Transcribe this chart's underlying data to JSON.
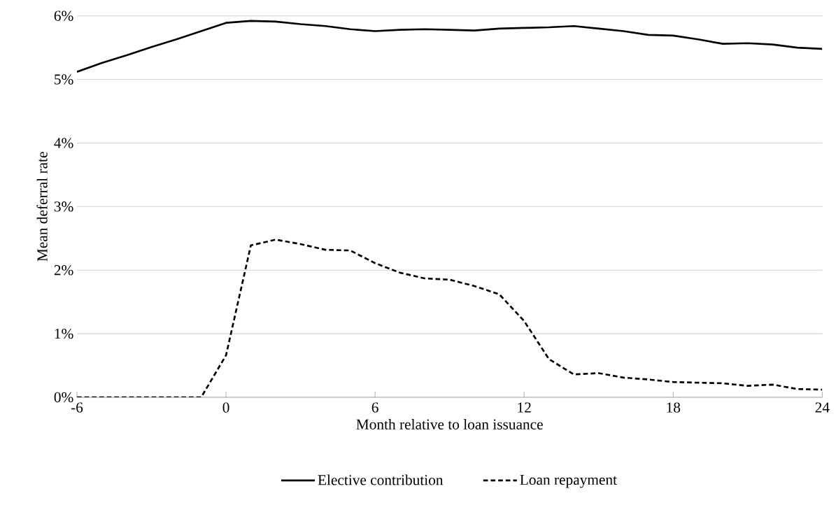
{
  "chart_data": {
    "type": "line",
    "xlabel": "Month relative to loan issuance",
    "ylabel": "Mean deferral rate",
    "x": [
      -6,
      -5,
      -4,
      -3,
      -2,
      -1,
      0,
      1,
      2,
      3,
      4,
      5,
      6,
      7,
      8,
      9,
      10,
      11,
      12,
      13,
      14,
      15,
      16,
      17,
      18,
      19,
      20,
      21,
      22,
      23,
      24
    ],
    "series": [
      {
        "name": "Elective contribution",
        "color": "#000000",
        "line_style": "solid",
        "values": [
          5.12,
          5.26,
          5.38,
          5.51,
          5.63,
          5.76,
          5.89,
          5.92,
          5.91,
          5.87,
          5.84,
          5.79,
          5.76,
          5.78,
          5.79,
          5.78,
          5.77,
          5.8,
          5.81,
          5.82,
          5.84,
          5.8,
          5.76,
          5.7,
          5.69,
          5.63,
          5.56,
          5.57,
          5.55,
          5.5,
          5.48
        ]
      },
      {
        "name": "Loan repayment",
        "color": "#000000",
        "line_style": "dashed",
        "values": [
          0,
          0,
          0,
          0,
          0,
          0,
          0.66,
          2.39,
          2.48,
          2.41,
          2.32,
          2.31,
          2.11,
          1.96,
          1.87,
          1.85,
          1.75,
          1.62,
          1.2,
          0.6,
          0.36,
          0.38,
          0.31,
          0.28,
          0.24,
          0.23,
          0.22,
          0.18,
          0.2,
          0.13,
          0.12
        ]
      }
    ],
    "xlim": [
      -6,
      24
    ],
    "xticks": [
      -6,
      0,
      6,
      12,
      18,
      24
    ],
    "ylim": [
      0,
      6
    ],
    "yticks": [
      {
        "value": 0,
        "label": "0%"
      },
      {
        "value": 1,
        "label": "1%"
      },
      {
        "value": 2,
        "label": "2%"
      },
      {
        "value": 3,
        "label": "3%"
      },
      {
        "value": 4,
        "label": "4%"
      },
      {
        "value": 5,
        "label": "5%"
      },
      {
        "value": 6,
        "label": "6%"
      }
    ],
    "grid": "y",
    "legend": "bottom"
  }
}
